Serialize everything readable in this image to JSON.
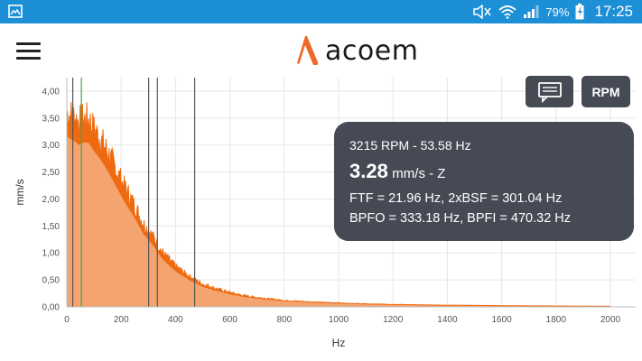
{
  "status_bar": {
    "battery": "79%",
    "time": "17:25",
    "icons": [
      "gallery-icon",
      "mute-icon",
      "wifi-icon",
      "signal-icon",
      "battery-icon"
    ]
  },
  "app_bar": {
    "logo_text": "acoem",
    "accent_color": "#ee6a2b"
  },
  "buttons": {
    "rpm_label": "RPM"
  },
  "info_card": {
    "rpm_line": "3215 RPM - 53.58 Hz",
    "amplitude_value": "3.28",
    "amplitude_unit": "mm/s - Z",
    "ftf_line": "FTF = 21.96 Hz, 2xBSF = 301.04 Hz",
    "bpfo_line": "BPFO = 333.18 Hz, BPFI = 470.32 Hz"
  },
  "chart_data": {
    "type": "area",
    "xlabel": "Hz",
    "ylabel": "mm/s",
    "xlim": [
      0,
      2000
    ],
    "ylim": [
      0,
      4.25
    ],
    "x_ticks": [
      "0",
      "200",
      "400",
      "600",
      "800",
      "1000",
      "1200",
      "1400",
      "1600",
      "1800",
      "2000"
    ],
    "y_ticks": [
      "0,00",
      "0,50",
      "1,00",
      "1,50",
      "2,00",
      "2,50",
      "3,00",
      "3,50",
      "4,00"
    ],
    "grid": true,
    "fill_color": "#f3a46f",
    "line_color": "#ee6a10",
    "envelope": {
      "x": [
        0,
        10,
        25,
        45,
        60,
        80,
        100,
        120,
        150,
        180,
        210,
        250,
        280,
        300,
        320,
        340,
        360,
        400,
        450,
        500,
        550,
        600,
        650,
        700,
        750,
        800,
        900,
        1000,
        1100,
        1200,
        1300,
        1400,
        1500,
        1600,
        1700,
        1800,
        1900,
        2000
      ],
      "y": [
        3.95,
        3.9,
        3.85,
        3.75,
        3.8,
        3.8,
        3.6,
        3.45,
        3.15,
        2.8,
        2.45,
        2.05,
        1.7,
        1.55,
        1.4,
        1.2,
        1.05,
        0.82,
        0.62,
        0.46,
        0.37,
        0.29,
        0.23,
        0.19,
        0.16,
        0.13,
        0.1,
        0.08,
        0.06,
        0.05,
        0.04,
        0.035,
        0.03,
        0.025,
        0.02,
        0.018,
        0.015,
        0.012
      ]
    },
    "fill_ratio": 0.8,
    "markers": [
      {
        "x": 21.96,
        "color": "#555555"
      },
      {
        "x": 53.58,
        "color": "#3aa655"
      },
      {
        "x": 301.04,
        "color": "#555555"
      },
      {
        "x": 333.18,
        "color": "#555555"
      },
      {
        "x": 470.32,
        "color": "#555555"
      }
    ]
  }
}
